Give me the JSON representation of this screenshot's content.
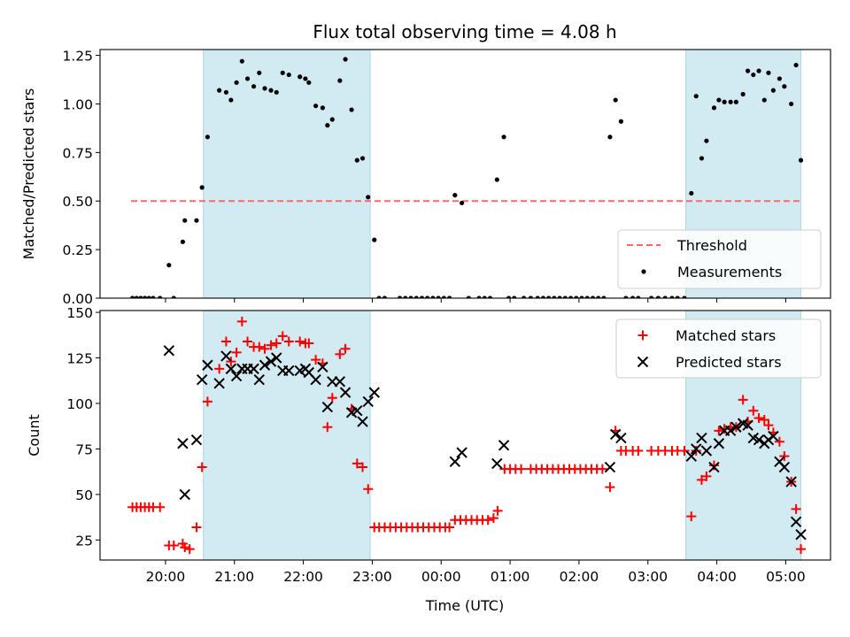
{
  "chart_data": {
    "title": "Flux total observing time = 4.08 h",
    "xlabel": "Time (UTC)",
    "x_ticks": [
      "20:00",
      "21:00",
      "22:00",
      "23:00",
      "00:00",
      "01:00",
      "02:00",
      "03:00",
      "04:00",
      "05:00"
    ],
    "x_unit": "hours since 20:00 UTC (x = 0 is 20:00)",
    "shaded_intervals": [
      [
        0.55,
        2.97
      ],
      [
        7.55,
        9.22
      ]
    ],
    "colors": {
      "shade": "#add8e6",
      "threshold": "#ff6666",
      "matched": "#ff0000",
      "predicted": "#000000",
      "measurement": "#000000"
    },
    "panels": [
      {
        "type": "scatter",
        "ylabel": "Matched/Predicted stars",
        "ylim": [
          0,
          1.28
        ],
        "yticks": [
          0.0,
          0.25,
          0.5,
          0.75,
          1.0,
          1.25
        ],
        "ytick_labels": [
          "0.00",
          "0.25",
          "0.50",
          "0.75",
          "1.00",
          "1.25"
        ],
        "legend": {
          "position": "lower-right",
          "threshold_label": "Threshold",
          "measurements_label": "Measurements"
        },
        "threshold": {
          "value": 0.5,
          "x_range": [
            -0.5,
            9.2
          ]
        },
        "measurements": [
          [
            -0.48,
            0
          ],
          [
            -0.42,
            0
          ],
          [
            -0.36,
            0
          ],
          [
            -0.3,
            0
          ],
          [
            -0.24,
            0
          ],
          [
            -0.18,
            0
          ],
          [
            -0.08,
            0
          ],
          [
            0.05,
            0.17
          ],
          [
            0.12,
            0
          ],
          [
            0.25,
            0.29
          ],
          [
            0.28,
            0.4
          ],
          [
            0.45,
            0.4
          ],
          [
            0.53,
            0.57
          ],
          [
            0.61,
            0.83
          ],
          [
            0.78,
            1.07
          ],
          [
            0.88,
            1.06
          ],
          [
            0.95,
            1.02
          ],
          [
            1.03,
            1.11
          ],
          [
            1.11,
            1.22
          ],
          [
            1.19,
            1.13
          ],
          [
            1.28,
            1.09
          ],
          [
            1.36,
            1.16
          ],
          [
            1.44,
            1.08
          ],
          [
            1.53,
            1.07
          ],
          [
            1.61,
            1.06
          ],
          [
            1.7,
            1.16
          ],
          [
            1.79,
            1.15
          ],
          [
            1.95,
            1.14
          ],
          [
            2.03,
            1.13
          ],
          [
            2.08,
            1.11
          ],
          [
            2.18,
            0.99
          ],
          [
            2.28,
            0.98
          ],
          [
            2.35,
            0.89
          ],
          [
            2.42,
            0.92
          ],
          [
            2.53,
            1.12
          ],
          [
            2.61,
            1.23
          ],
          [
            2.7,
            0.97
          ],
          [
            2.78,
            0.71
          ],
          [
            2.86,
            0.72
          ],
          [
            2.94,
            0.52
          ],
          [
            3.03,
            0.3
          ],
          [
            3.1,
            0
          ],
          [
            3.18,
            0
          ],
          [
            3.4,
            0
          ],
          [
            3.48,
            0
          ],
          [
            3.56,
            0
          ],
          [
            3.64,
            0
          ],
          [
            3.72,
            0
          ],
          [
            3.8,
            0
          ],
          [
            3.88,
            0
          ],
          [
            3.96,
            0
          ],
          [
            4.04,
            0
          ],
          [
            4.12,
            0
          ],
          [
            4.2,
            0.53
          ],
          [
            4.3,
            0.49
          ],
          [
            4.4,
            0
          ],
          [
            4.55,
            0
          ],
          [
            4.63,
            0
          ],
          [
            4.71,
            0
          ],
          [
            4.81,
            0.61
          ],
          [
            4.91,
            0.83
          ],
          [
            4.98,
            0
          ],
          [
            5.06,
            0
          ],
          [
            5.2,
            0
          ],
          [
            5.3,
            0
          ],
          [
            5.4,
            0
          ],
          [
            5.48,
            0
          ],
          [
            5.56,
            0
          ],
          [
            5.64,
            0
          ],
          [
            5.72,
            0
          ],
          [
            5.8,
            0
          ],
          [
            5.88,
            0
          ],
          [
            5.96,
            0
          ],
          [
            6.04,
            0
          ],
          [
            6.12,
            0
          ],
          [
            6.2,
            0
          ],
          [
            6.28,
            0
          ],
          [
            6.36,
            0
          ],
          [
            6.45,
            0.83
          ],
          [
            6.53,
            1.02
          ],
          [
            6.61,
            0.91
          ],
          [
            6.68,
            0
          ],
          [
            6.78,
            0
          ],
          [
            6.86,
            0
          ],
          [
            7.05,
            0
          ],
          [
            7.15,
            0
          ],
          [
            7.25,
            0
          ],
          [
            7.35,
            0
          ],
          [
            7.43,
            0
          ],
          [
            7.53,
            0
          ],
          [
            7.63,
            0.54
          ],
          [
            7.7,
            1.04
          ],
          [
            7.78,
            0.72
          ],
          [
            7.85,
            0.81
          ],
          [
            7.96,
            0.98
          ],
          [
            8.03,
            1.02
          ],
          [
            8.11,
            1.01
          ],
          [
            8.2,
            1.01
          ],
          [
            8.28,
            1.01
          ],
          [
            8.38,
            1.05
          ],
          [
            8.45,
            1.17
          ],
          [
            8.53,
            1.15
          ],
          [
            8.61,
            1.17
          ],
          [
            8.69,
            1.02
          ],
          [
            8.75,
            1.16
          ],
          [
            8.82,
            1.07
          ],
          [
            8.91,
            1.13
          ],
          [
            8.98,
            1.09
          ],
          [
            9.08,
            1.0
          ],
          [
            9.15,
            1.2
          ],
          [
            9.22,
            0.71
          ]
        ]
      },
      {
        "type": "scatter",
        "ylabel": "Count",
        "ylim": [
          14,
          151
        ],
        "yticks": [
          25,
          50,
          75,
          100,
          125,
          150
        ],
        "ytick_labels": [
          "25",
          "50",
          "75",
          "100",
          "125",
          "150"
        ],
        "legend": {
          "position": "upper-right",
          "matched_label": "Matched stars",
          "predicted_label": "Predicted stars"
        },
        "matched": [
          [
            -0.48,
            43
          ],
          [
            -0.42,
            43
          ],
          [
            -0.36,
            43
          ],
          [
            -0.3,
            43
          ],
          [
            -0.24,
            43
          ],
          [
            -0.18,
            43
          ],
          [
            -0.08,
            43
          ],
          [
            0.05,
            22
          ],
          [
            0.12,
            22
          ],
          [
            0.25,
            23
          ],
          [
            0.28,
            21
          ],
          [
            0.35,
            20
          ],
          [
            0.45,
            32
          ],
          [
            0.53,
            65
          ],
          [
            0.61,
            101
          ],
          [
            0.78,
            119
          ],
          [
            0.88,
            134
          ],
          [
            0.95,
            123
          ],
          [
            1.03,
            128
          ],
          [
            1.11,
            145
          ],
          [
            1.19,
            134
          ],
          [
            1.28,
            131
          ],
          [
            1.36,
            131
          ],
          [
            1.44,
            130
          ],
          [
            1.53,
            132
          ],
          [
            1.61,
            133
          ],
          [
            1.7,
            137
          ],
          [
            1.79,
            134
          ],
          [
            1.95,
            134
          ],
          [
            2.03,
            133
          ],
          [
            2.08,
            133
          ],
          [
            2.18,
            124
          ],
          [
            2.28,
            122
          ],
          [
            2.35,
            87
          ],
          [
            2.42,
            103
          ],
          [
            2.53,
            127
          ],
          [
            2.61,
            130
          ],
          [
            2.7,
            97
          ],
          [
            2.78,
            67
          ],
          [
            2.86,
            65
          ],
          [
            2.94,
            53
          ],
          [
            3.03,
            32
          ],
          [
            3.1,
            32
          ],
          [
            3.18,
            32
          ],
          [
            3.26,
            32
          ],
          [
            3.34,
            32
          ],
          [
            3.42,
            32
          ],
          [
            3.5,
            32
          ],
          [
            3.58,
            32
          ],
          [
            3.66,
            32
          ],
          [
            3.74,
            32
          ],
          [
            3.82,
            32
          ],
          [
            3.9,
            32
          ],
          [
            3.98,
            32
          ],
          [
            4.06,
            32
          ],
          [
            4.12,
            32
          ],
          [
            4.2,
            36
          ],
          [
            4.28,
            36
          ],
          [
            4.36,
            36
          ],
          [
            4.44,
            36
          ],
          [
            4.52,
            36
          ],
          [
            4.6,
            36
          ],
          [
            4.68,
            36
          ],
          [
            4.76,
            37
          ],
          [
            4.82,
            41
          ],
          [
            4.92,
            64
          ],
          [
            5.0,
            64
          ],
          [
            5.08,
            64
          ],
          [
            5.16,
            64
          ],
          [
            5.3,
            64
          ],
          [
            5.38,
            64
          ],
          [
            5.46,
            64
          ],
          [
            5.54,
            64
          ],
          [
            5.62,
            64
          ],
          [
            5.7,
            64
          ],
          [
            5.78,
            64
          ],
          [
            5.86,
            64
          ],
          [
            5.94,
            64
          ],
          [
            6.02,
            64
          ],
          [
            6.1,
            64
          ],
          [
            6.18,
            64
          ],
          [
            6.26,
            64
          ],
          [
            6.34,
            64
          ],
          [
            6.45,
            54
          ],
          [
            6.53,
            85
          ],
          [
            6.61,
            74
          ],
          [
            6.68,
            74
          ],
          [
            6.78,
            74
          ],
          [
            6.86,
            74
          ],
          [
            7.05,
            74
          ],
          [
            7.15,
            74
          ],
          [
            7.25,
            74
          ],
          [
            7.35,
            74
          ],
          [
            7.43,
            74
          ],
          [
            7.53,
            74
          ],
          [
            7.63,
            38
          ],
          [
            7.7,
            74
          ],
          [
            7.78,
            58
          ],
          [
            7.85,
            60
          ],
          [
            7.96,
            66
          ],
          [
            8.03,
            85
          ],
          [
            8.11,
            86
          ],
          [
            8.2,
            87
          ],
          [
            8.28,
            87
          ],
          [
            8.38,
            102
          ],
          [
            8.45,
            90
          ],
          [
            8.53,
            96
          ],
          [
            8.61,
            92
          ],
          [
            8.69,
            91
          ],
          [
            8.75,
            88
          ],
          [
            8.82,
            84
          ],
          [
            8.91,
            79
          ],
          [
            8.98,
            71
          ],
          [
            9.08,
            57
          ],
          [
            9.15,
            42
          ],
          [
            9.22,
            20
          ]
        ],
        "predicted": [
          [
            0.05,
            129
          ],
          [
            0.25,
            78
          ],
          [
            0.28,
            50
          ],
          [
            0.45,
            80
          ],
          [
            0.53,
            113
          ],
          [
            0.61,
            121
          ],
          [
            0.78,
            111
          ],
          [
            0.88,
            126
          ],
          [
            0.95,
            119
          ],
          [
            1.03,
            115
          ],
          [
            1.11,
            119
          ],
          [
            1.19,
            119
          ],
          [
            1.28,
            119
          ],
          [
            1.36,
            113
          ],
          [
            1.44,
            121
          ],
          [
            1.53,
            123
          ],
          [
            1.61,
            125
          ],
          [
            1.7,
            118
          ],
          [
            1.79,
            118
          ],
          [
            1.95,
            118
          ],
          [
            2.03,
            119
          ],
          [
            2.08,
            117
          ],
          [
            2.18,
            113
          ],
          [
            2.28,
            120
          ],
          [
            2.35,
            98
          ],
          [
            2.42,
            112
          ],
          [
            2.53,
            112
          ],
          [
            2.61,
            106
          ],
          [
            2.7,
            95
          ],
          [
            2.78,
            96
          ],
          [
            2.86,
            90
          ],
          [
            2.94,
            101
          ],
          [
            3.03,
            106
          ],
          [
            4.2,
            68
          ],
          [
            4.3,
            73
          ],
          [
            4.81,
            67
          ],
          [
            4.91,
            77
          ],
          [
            6.45,
            65
          ],
          [
            6.53,
            83
          ],
          [
            6.61,
            81
          ],
          [
            7.63,
            71
          ],
          [
            7.7,
            75
          ],
          [
            7.78,
            81
          ],
          [
            7.85,
            74
          ],
          [
            7.96,
            65
          ],
          [
            8.03,
            78
          ],
          [
            8.11,
            85
          ],
          [
            8.2,
            85
          ],
          [
            8.28,
            87
          ],
          [
            8.38,
            89
          ],
          [
            8.45,
            88
          ],
          [
            8.53,
            81
          ],
          [
            8.61,
            80
          ],
          [
            8.69,
            78
          ],
          [
            8.75,
            80
          ],
          [
            8.82,
            82
          ],
          [
            8.91,
            68
          ],
          [
            8.98,
            65
          ],
          [
            9.08,
            57
          ],
          [
            9.15,
            35
          ],
          [
            9.22,
            28
          ]
        ]
      }
    ]
  }
}
